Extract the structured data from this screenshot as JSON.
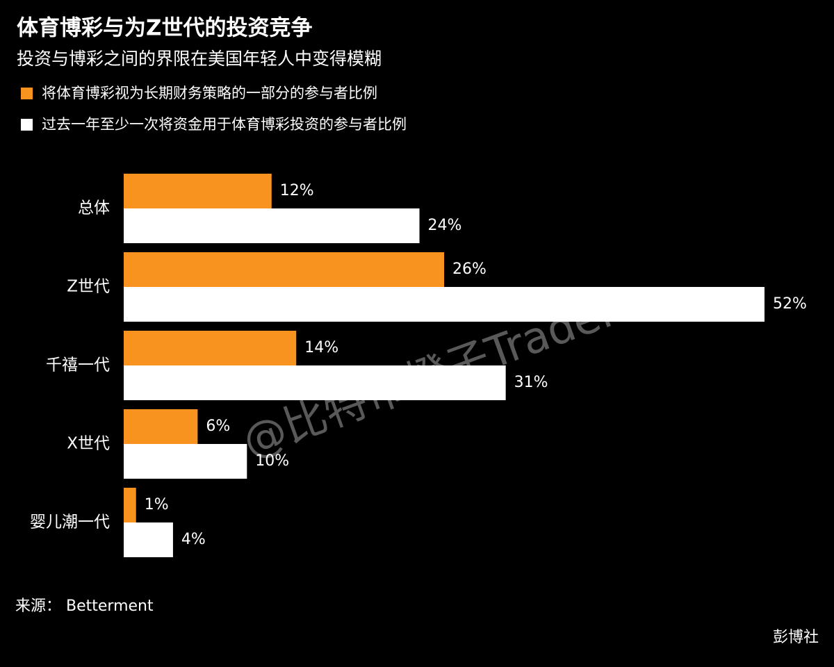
{
  "chart_data": {
    "type": "bar",
    "orientation": "horizontal",
    "title": "体育博彩与为Z世代的投资竞争",
    "subtitle": "投资与博彩之间的界限在美国年轻人中变得模糊",
    "categories": [
      "总体",
      "Z世代",
      "千禧一代",
      "X世代",
      "婴儿潮一代"
    ],
    "series": [
      {
        "name": "将体育博彩视为长期财务策略的一部分的参与者比例",
        "color": "#f7931e",
        "values": [
          12,
          26,
          14,
          6,
          1
        ],
        "value_labels": [
          "12%",
          "26%",
          "14%",
          "6%",
          "1%"
        ]
      },
      {
        "name": "过去一年至少一次将资金用于体育博彩投资的参与者比例",
        "color": "#ffffff",
        "values": [
          24,
          52,
          31,
          10,
          4
        ],
        "value_labels": [
          "24%",
          "52%",
          "31%",
          "10%",
          "4%"
        ]
      }
    ],
    "source": "来源： Betterment",
    "credit": "彭博社",
    "watermark": "@比特币橙子Trader"
  }
}
